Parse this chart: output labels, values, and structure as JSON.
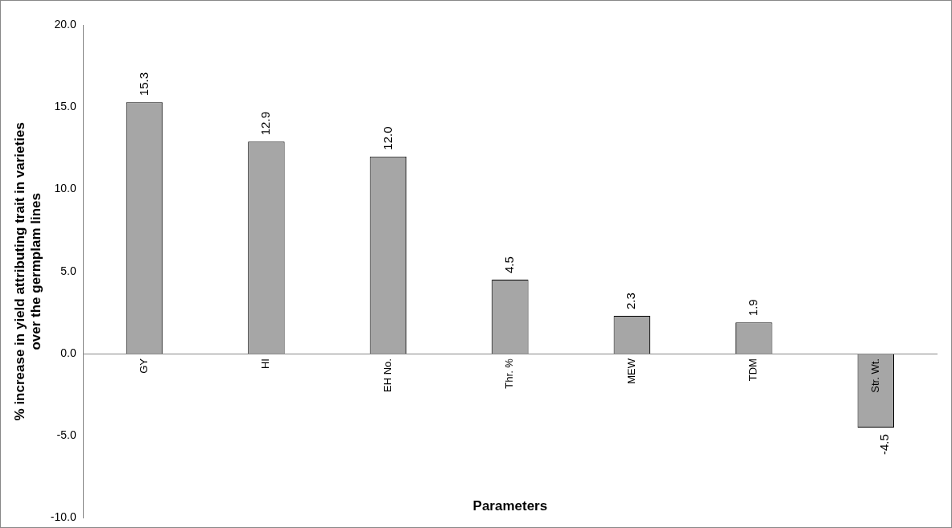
{
  "chart_data": {
    "type": "bar",
    "categories": [
      "GY",
      "HI",
      "EH No.",
      "Thr. %",
      "MEW",
      "TDM",
      "Str. Wt."
    ],
    "values": [
      15.3,
      12.9,
      12.0,
      4.5,
      2.3,
      1.9,
      -4.5
    ],
    "color": "#a6a6a6",
    "xlabel": "Parameters",
    "ylabel": "% increase in yield attributing trait in varieties over the germplam lines",
    "ylim": [
      -10,
      20
    ],
    "yticks": [
      {
        "value": -10,
        "label": "-10.0"
      },
      {
        "value": -5,
        "label": "-5.0"
      },
      {
        "value": 0,
        "label": "0.0"
      },
      {
        "value": 5,
        "label": "5.0"
      },
      {
        "value": 10,
        "label": "10.0"
      },
      {
        "value": 15,
        "label": "15.0"
      },
      {
        "value": 20,
        "label": "20.0"
      }
    ],
    "value_labels": [
      "15.3",
      "12.9",
      "12.0",
      "4.5",
      "2.3",
      "1.9",
      "-4.5"
    ],
    "grid": false,
    "legend": false
  }
}
